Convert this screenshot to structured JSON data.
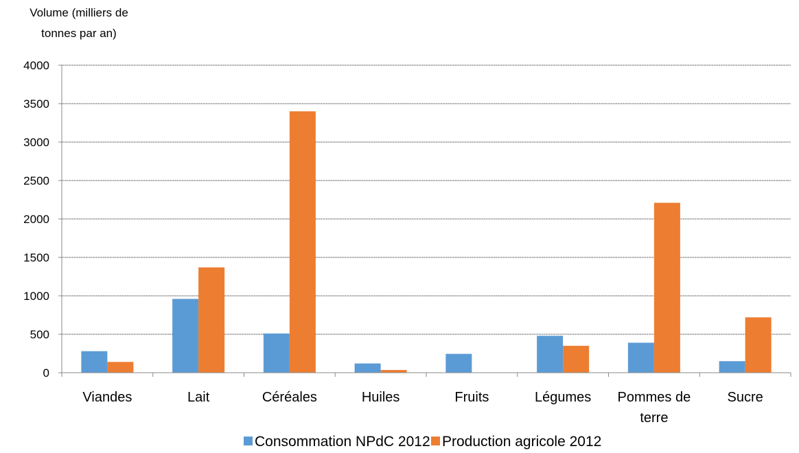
{
  "chart_data": {
    "type": "bar",
    "ylabel_lines": [
      "Volume (milliers de",
      "tonnes par an)"
    ],
    "xlabel": "",
    "categories": [
      [
        "Viandes"
      ],
      [
        "Lait"
      ],
      [
        "Céréales"
      ],
      [
        "Huiles"
      ],
      [
        "Fruits"
      ],
      [
        "Légumes"
      ],
      [
        "Pommes de",
        "terre"
      ],
      [
        "Sucre"
      ]
    ],
    "series": [
      {
        "name": "Consommation NPdC 2012",
        "color": "#5B9BD5",
        "values": [
          280,
          960,
          510,
          120,
          245,
          480,
          390,
          150
        ]
      },
      {
        "name": "Production agricole 2012",
        "color": "#ED7D31",
        "values": [
          140,
          1370,
          3400,
          35,
          0,
          350,
          2210,
          720
        ]
      }
    ],
    "ylim": [
      0,
      4000
    ],
    "yticks": [
      "0",
      "500",
      "1000",
      "1500",
      "2000",
      "2500",
      "3000",
      "3500",
      "4000"
    ],
    "grid": true,
    "legend_position": "bottom"
  }
}
